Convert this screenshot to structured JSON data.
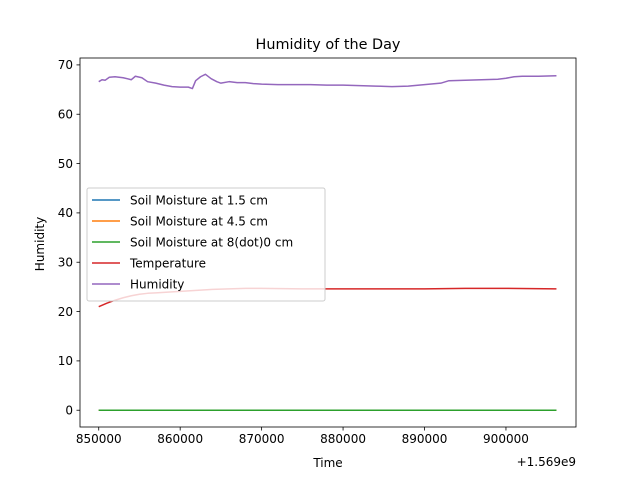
{
  "chart_data": {
    "type": "line",
    "title": "Humidity of the Day",
    "xlabel": "Time",
    "ylabel": "Humidity",
    "x_offset_label": "+1.569e9",
    "xlim": [
      847700,
      908600
    ],
    "ylim": [
      -3.4,
      71.4
    ],
    "x_ticks": [
      850000,
      860000,
      870000,
      880000,
      890000,
      900000
    ],
    "x_tick_labels": [
      "850000",
      "860000",
      "870000",
      "880000",
      "890000",
      "900000"
    ],
    "y_ticks": [
      0,
      10,
      20,
      30,
      40,
      50,
      60,
      70
    ],
    "y_tick_labels": [
      "0",
      "10",
      "20",
      "30",
      "40",
      "50",
      "60",
      "70"
    ],
    "legend_position": "center-left",
    "grid": false,
    "series": [
      {
        "name": "Soil Moisture at 1.5 cm",
        "color": "#1f77b4",
        "x": [
          850000,
          906200
        ],
        "y": [
          0,
          0
        ]
      },
      {
        "name": "Soil Moisture at 4.5 cm",
        "color": "#ff7f0e",
        "x": [
          850000,
          906200
        ],
        "y": [
          0,
          0
        ]
      },
      {
        "name": "Soil Moisture at 8(dot)0 cm",
        "color": "#2ca02c",
        "x": [
          850000,
          906200
        ],
        "y": [
          0,
          0
        ]
      },
      {
        "name": "Temperature",
        "color": "#d62728",
        "x": [
          850000,
          851000,
          852000,
          853000,
          854000,
          855000,
          856000,
          857000,
          858000,
          860000,
          862000,
          864000,
          866000,
          868000,
          870000,
          875000,
          880000,
          885000,
          890000,
          895000,
          900000,
          906200
        ],
        "y": [
          21.0,
          21.7,
          22.3,
          22.8,
          23.2,
          23.5,
          23.7,
          23.8,
          23.9,
          24.1,
          24.3,
          24.5,
          24.6,
          24.7,
          24.7,
          24.6,
          24.6,
          24.6,
          24.6,
          24.7,
          24.7,
          24.6
        ]
      },
      {
        "name": "Humidity",
        "color": "#9467bd",
        "x": [
          850000,
          850400,
          850800,
          851300,
          852000,
          853000,
          854000,
          854500,
          855300,
          856000,
          857000,
          858000,
          859000,
          860000,
          861000,
          861500,
          861900,
          862500,
          863100,
          863800,
          864500,
          865000,
          866000,
          867000,
          868000,
          869000,
          870000,
          872000,
          874000,
          876000,
          878000,
          880000,
          882000,
          884000,
          886000,
          888000,
          890000,
          892000,
          893000,
          895000,
          897000,
          899000,
          900000,
          901000,
          902000,
          904000,
          906200
        ],
        "y": [
          66.6,
          67.0,
          66.9,
          67.5,
          67.6,
          67.4,
          67.0,
          67.7,
          67.4,
          66.6,
          66.3,
          65.9,
          65.6,
          65.5,
          65.5,
          65.2,
          66.8,
          67.6,
          68.1,
          67.2,
          66.6,
          66.3,
          66.6,
          66.4,
          66.4,
          66.2,
          66.1,
          66.0,
          66.0,
          66.0,
          65.9,
          65.9,
          65.8,
          65.7,
          65.6,
          65.7,
          66.0,
          66.3,
          66.8,
          66.9,
          67.0,
          67.1,
          67.3,
          67.6,
          67.7,
          67.7,
          67.8
        ]
      }
    ]
  }
}
